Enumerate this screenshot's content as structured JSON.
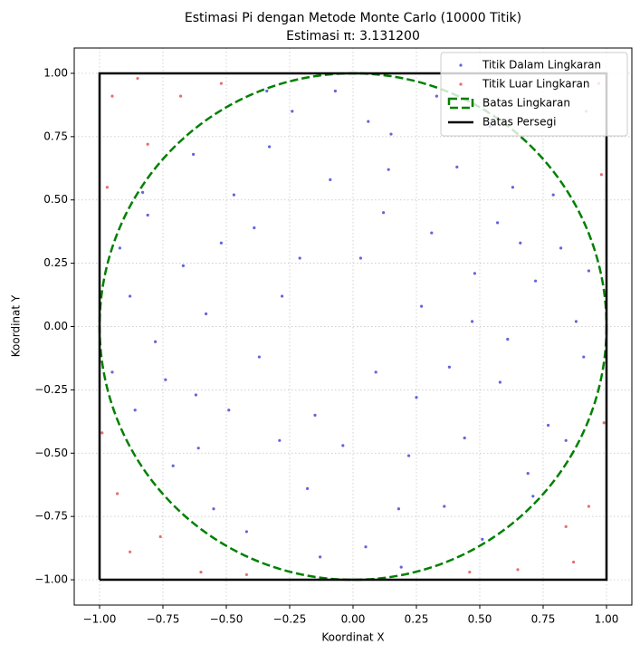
{
  "chart_data": {
    "type": "scatter",
    "title": "Estimasi Pi dengan Metode Monte Carlo (10000 Titik)",
    "subtitle": "Estimasi π: 3.131200",
    "x_label": "Koordinat X",
    "y_label": "Koordinat Y",
    "xlim": [
      -1.1,
      1.1
    ],
    "ylim": [
      -1.1,
      1.1
    ],
    "xticks": [
      {
        "value": -1,
        "label": "−1.00"
      },
      {
        "value": -0.75,
        "label": "−0.75"
      },
      {
        "value": -0.5,
        "label": "−0.50"
      },
      {
        "value": -0.25,
        "label": "−0.25"
      },
      {
        "value": 0,
        "label": "0.00"
      },
      {
        "value": 0.25,
        "label": "0.25"
      },
      {
        "value": 0.5,
        "label": "0.50"
      },
      {
        "value": 0.75,
        "label": "0.75"
      },
      {
        "value": 1,
        "label": "1.00"
      }
    ],
    "yticks": [
      {
        "value": -1,
        "label": "−1.00"
      },
      {
        "value": -0.75,
        "label": "−0.75"
      },
      {
        "value": -0.5,
        "label": "−0.50"
      },
      {
        "value": -0.25,
        "label": "−0.25"
      },
      {
        "value": 0,
        "label": "0.00"
      },
      {
        "value": 0.25,
        "label": "0.25"
      },
      {
        "value": 0.5,
        "label": "0.50"
      },
      {
        "value": 0.75,
        "label": "0.75"
      },
      {
        "value": 1,
        "label": "1.00"
      }
    ],
    "grid": true,
    "legend": "upper right",
    "series": [
      {
        "name": "Titik Dalam Lingkaran",
        "color": "#2222cc",
        "x": [
          0.12,
          -0.33,
          0.58,
          -0.61,
          0.05,
          0.82,
          -0.88,
          0.41,
          -0.15,
          0.27,
          -0.52,
          0.69,
          -0.07,
          0.91,
          -0.74,
          0.36,
          -0.42,
          0.15,
          -0.95,
          0.63,
          -0.28,
          0.48,
          -0.63,
          0.22,
          0.77,
          -0.18,
          0.03,
          -0.81,
          0.54,
          -0.37,
          0.88,
          -0.55,
          0.19,
          -0.09,
          0.72,
          -0.47,
          0.31,
          -0.71,
          0.44,
          -0.24,
          0.61,
          -0.86,
          0.09,
          0.33,
          -0.58,
          0.79,
          -0.13,
          0.51,
          -0.92,
          0.25,
          -0.39,
          0.66,
          -0.04,
          0.84,
          -0.67,
          0.14,
          -0.29,
          0.57,
          -0.78,
          0.38,
          -0.21,
          0.93,
          -0.49,
          0.06,
          0.71,
          -0.34,
          0.47,
          -0.62,
          0.18,
          -0.83
        ],
        "y": [
          0.45,
          0.71,
          -0.22,
          -0.48,
          -0.87,
          0.31,
          0.12,
          0.63,
          -0.35,
          0.08,
          0.33,
          -0.58,
          0.93,
          -0.12,
          -0.21,
          -0.71,
          -0.81,
          0.76,
          -0.18,
          0.55,
          0.12,
          0.21,
          0.68,
          -0.51,
          -0.39,
          -0.64,
          0.27,
          0.44,
          0.79,
          -0.12,
          0.02,
          -0.72,
          -0.95,
          0.58,
          0.18,
          0.52,
          0.37,
          -0.55,
          -0.44,
          0.85,
          -0.05,
          -0.33,
          -0.18,
          0.91,
          0.05,
          0.52,
          -0.91,
          -0.84,
          0.31,
          -0.28,
          0.39,
          0.33,
          -0.47,
          -0.45,
          0.24,
          0.62,
          -0.45,
          0.41,
          -0.06,
          -0.16,
          0.27,
          0.22,
          -0.33,
          0.81,
          -0.67,
          0.93,
          0.02,
          -0.27,
          -0.72,
          0.53
        ]
      },
      {
        "name": "Titik Luar Lingkaran",
        "color": "#e03030",
        "x": [
          0.92,
          -0.95,
          0.87,
          -0.88,
          0.98,
          -0.97,
          0.65,
          -0.6,
          0.78,
          -0.81,
          0.93,
          -0.76,
          0.55,
          -0.52,
          0.99,
          -0.99,
          0.71,
          -0.68,
          0.84,
          -0.93,
          0.97,
          -0.85,
          0.46,
          -0.42
        ],
        "y": [
          0.85,
          0.91,
          -0.93,
          -0.89,
          0.6,
          0.55,
          -0.96,
          -0.97,
          0.82,
          0.72,
          -0.71,
          -0.83,
          0.95,
          0.96,
          -0.38,
          -0.42,
          0.88,
          0.91,
          -0.79,
          -0.66,
          0.96,
          0.98,
          -0.97,
          -0.98
        ]
      },
      {
        "name": "Batas Lingkaran",
        "color": "#008000",
        "center": [
          0,
          0
        ],
        "radius": 1
      },
      {
        "name": "Batas Persegi",
        "color": "#000000",
        "x": [
          -1,
          1,
          1,
          -1,
          -1
        ],
        "y": [
          -1,
          -1,
          1,
          1,
          -1
        ]
      }
    ]
  }
}
